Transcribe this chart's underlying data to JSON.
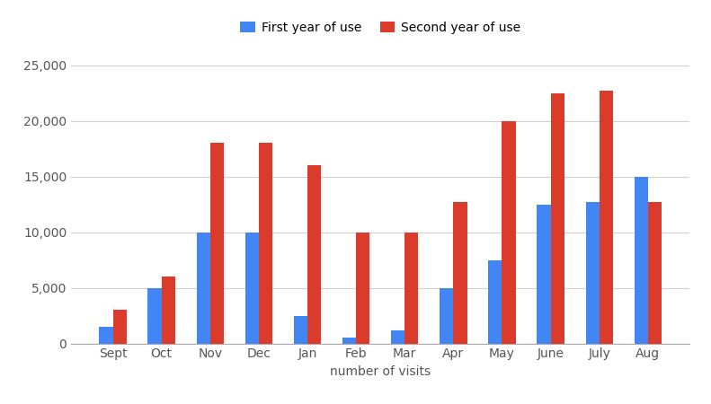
{
  "months": [
    "Sept",
    "Oct",
    "Nov",
    "Dec",
    "Jan",
    "Feb",
    "Mar",
    "Apr",
    "May",
    "June",
    "July",
    "Aug"
  ],
  "first_year": [
    1500,
    5000,
    10000,
    10000,
    2500,
    500,
    1200,
    5000,
    7500,
    12500,
    12700,
    15000
  ],
  "second_year": [
    3000,
    6000,
    18000,
    18000,
    16000,
    10000,
    10000,
    12700,
    20000,
    22500,
    22700,
    12700
  ],
  "first_color": "#4285f4",
  "second_color": "#db3b2b",
  "legend_first": "First year of use",
  "legend_second": "Second year of use",
  "xlabel": "number of visits",
  "ylim": [
    0,
    26500
  ],
  "yticks": [
    0,
    5000,
    10000,
    15000,
    20000,
    25000
  ],
  "bar_width": 0.28,
  "background_color": "#ffffff",
  "grid_color": "#d0d0d0",
  "label_fontsize": 10,
  "legend_fontsize": 10
}
